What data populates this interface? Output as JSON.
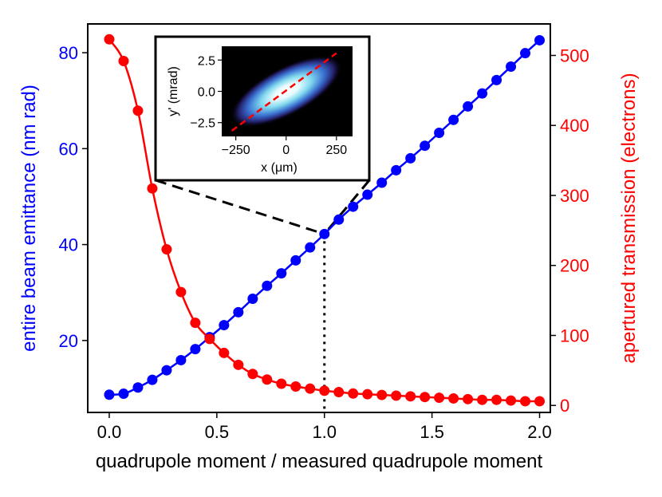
{
  "colors": {
    "left": "#0000ff",
    "right": "#ff0000",
    "axis": "#000000",
    "connector": "#000000"
  },
  "chart_data": [
    {
      "type": "line",
      "title": "",
      "xlabel": "quadrupole moment / measured quadrupole moment",
      "ylabel": "entire beam emittance (nm rad)",
      "ylabel_right": "apertured transmission (electrons)",
      "xlim": [
        -0.1,
        2.05
      ],
      "ylim": [
        5,
        86
      ],
      "ylim_right": [
        -10,
        545
      ],
      "xticks": [
        "0.0",
        "0.5",
        "1.0",
        "1.5",
        "2.0"
      ],
      "yticks": [
        "20",
        "40",
        "60",
        "80"
      ],
      "yticks_right": [
        "0",
        "100",
        "200",
        "300",
        "400",
        "500"
      ],
      "grid": false,
      "legend": "none",
      "marker": "circle",
      "reference_line": {
        "x": 1.0,
        "style": "dotted"
      },
      "series": [
        {
          "axis": "left",
          "color": "#0000ff",
          "x": [
            0.0,
            0.0667,
            0.1333,
            0.2,
            0.2667,
            0.3333,
            0.4,
            0.4667,
            0.5333,
            0.6,
            0.6667,
            0.7333,
            0.8,
            0.8667,
            0.9333,
            1.0,
            1.0667,
            1.1333,
            1.2,
            1.2667,
            1.3333,
            1.4,
            1.4667,
            1.5333,
            1.6,
            1.6667,
            1.7333,
            1.8,
            1.8667,
            1.9333,
            2.0
          ],
          "values": [
            8.7,
            8.9,
            10.2,
            11.8,
            13.8,
            15.9,
            18.2,
            20.7,
            23.2,
            25.9,
            28.7,
            31.4,
            34.0,
            36.7,
            39.4,
            42.2,
            45.2,
            47.9,
            50.4,
            52.9,
            55.5,
            58.0,
            60.6,
            63.3,
            66.0,
            68.8,
            71.5,
            74.3,
            77.1,
            79.9,
            82.6
          ]
        },
        {
          "axis": "right",
          "color": "#ff0000",
          "x": [
            0.0,
            0.0667,
            0.1333,
            0.2,
            0.2667,
            0.3333,
            0.4,
            0.4667,
            0.5333,
            0.6,
            0.6667,
            0.7333,
            0.8,
            0.8667,
            0.9333,
            1.0,
            1.0667,
            1.1333,
            1.2,
            1.2667,
            1.3333,
            1.4,
            1.4667,
            1.5333,
            1.6,
            1.6667,
            1.7333,
            1.8,
            1.8667,
            1.9333,
            2.0
          ],
          "values": [
            523,
            492,
            421,
            310,
            223,
            162,
            118,
            95,
            75,
            58,
            45,
            37,
            31,
            27,
            24,
            21,
            19,
            17,
            16,
            15,
            14,
            13,
            12,
            11,
            10,
            9,
            8,
            8,
            7,
            6,
            6
          ]
        }
      ],
      "inset": {
        "type": "heatmap",
        "description_ref": "phase space distribution at x = 1.0",
        "xlabel": "x (μm)",
        "ylabel": "y' (mrad)",
        "xlim": [
          -320,
          330
        ],
        "ylim": [
          -3.6,
          3.6
        ],
        "xticks": [
          "−250",
          "0",
          "250"
        ],
        "yticks": [
          "2.5",
          "0.0",
          "−2.5"
        ],
        "fit_line": {
          "x": [
            -270,
            250
          ],
          "y": [
            -3.15,
            3.05
          ],
          "color": "#ff0000",
          "style": "dashed"
        }
      }
    }
  ]
}
